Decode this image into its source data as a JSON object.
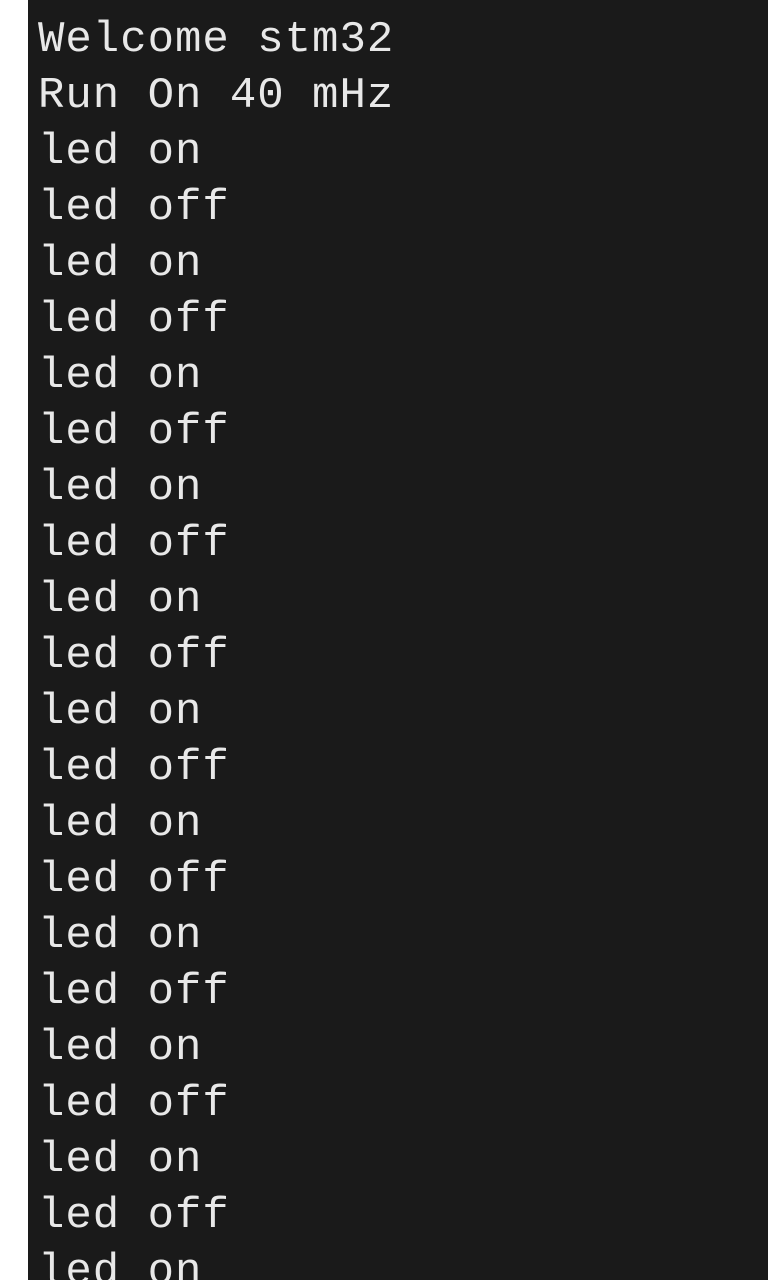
{
  "terminal": {
    "background_color": "#1a1a1a",
    "text_color": "#e8e8e8",
    "font_family": "monospace",
    "font_size": 44,
    "lines": [
      "led off",
      "Welcome stm32",
      "Run On 40 mHz",
      "led on",
      "led off",
      "led on",
      "led off",
      "led on",
      "led off",
      "led on",
      "led off",
      "led on",
      "led off",
      "led on",
      "led off",
      "led on",
      "led off",
      "led on",
      "led off",
      "led on",
      "led off",
      "led on",
      "led off",
      "led on"
    ]
  }
}
